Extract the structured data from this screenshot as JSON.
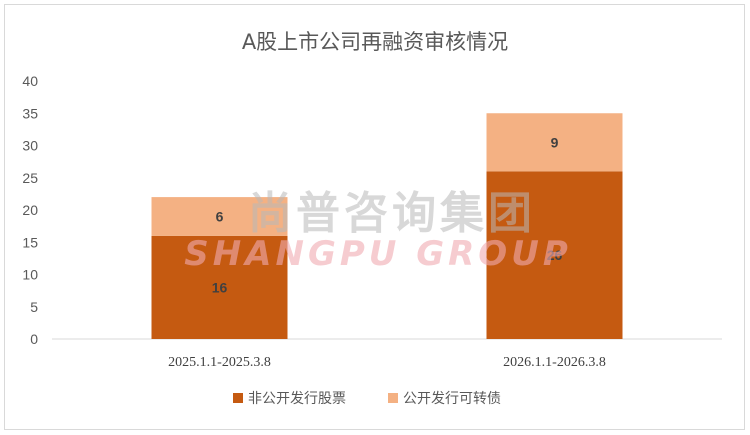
{
  "chart_data": {
    "type": "bar",
    "stacked": true,
    "title": "A股上市公司再融资审核情况",
    "categories": [
      "2025.1.1-2025.3.8",
      "2026.1.1-2026.3.8"
    ],
    "series": [
      {
        "name": "非公开发行股票",
        "values": [
          16,
          26
        ],
        "color": "#c55a11"
      },
      {
        "name": "公开发行可转债",
        "values": [
          6,
          9
        ],
        "color": "#f4b183"
      }
    ],
    "ylim": [
      0,
      40
    ],
    "yticks": [
      0,
      5,
      10,
      15,
      20,
      25,
      30,
      35,
      40
    ],
    "grid": false,
    "legend": "bottom"
  },
  "watermark": {
    "cn": "尚普咨询集团",
    "en": "SHANGPU GROUP"
  }
}
